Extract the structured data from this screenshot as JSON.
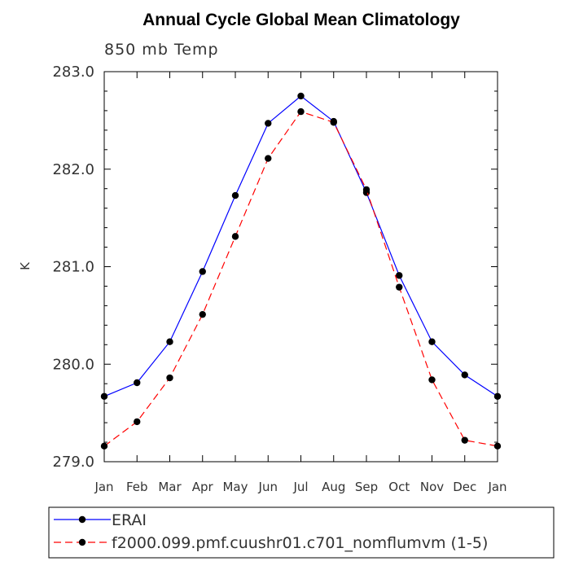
{
  "chart_data": {
    "type": "line",
    "title": "Annual Cycle Global Mean Climatology",
    "subtitle": "850 mb Temp",
    "xlabel": "",
    "ylabel": "K",
    "categories": [
      "Jan",
      "Feb",
      "Mar",
      "Apr",
      "May",
      "Jun",
      "Jul",
      "Aug",
      "Sep",
      "Oct",
      "Nov",
      "Dec",
      "Jan"
    ],
    "ylim": [
      279.0,
      283.0
    ],
    "yticks": [
      "279.0",
      "280.0",
      "281.0",
      "282.0",
      "283.0"
    ],
    "grid": false,
    "legend_position": "bottom",
    "series": [
      {
        "name": "ERAI",
        "color": "#0000ff",
        "line_style": "solid",
        "marker": "filled-circle",
        "values": [
          279.67,
          279.81,
          280.23,
          280.95,
          281.73,
          282.47,
          282.75,
          282.49,
          281.76,
          280.91,
          280.23,
          279.89,
          279.67
        ]
      },
      {
        "name": "f2000.099.pmf.cuushr01.c701_nomflumvm (1-5)",
        "color": "#ff0000",
        "line_style": "dashed",
        "marker": "filled-circle",
        "values": [
          279.16,
          279.41,
          279.86,
          280.51,
          281.31,
          282.11,
          282.59,
          282.48,
          281.79,
          280.79,
          279.84,
          279.22,
          279.16
        ]
      }
    ]
  }
}
